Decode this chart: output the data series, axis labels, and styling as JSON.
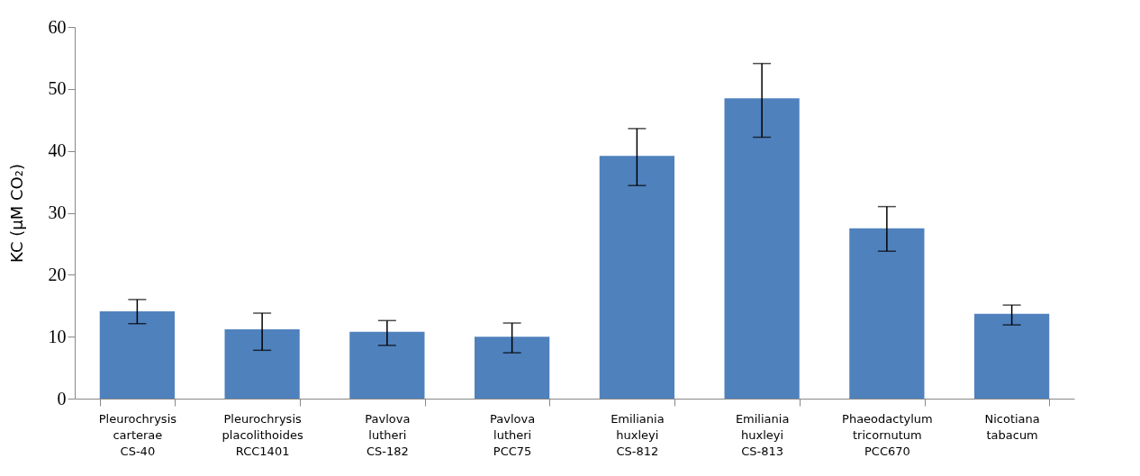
{
  "chart_data": {
    "type": "bar",
    "ylabel": "KC (μM CO₂)",
    "categories": [
      "Pleurochrysis\ncarterae\nCS-40",
      "Pleurochrysis\nplacolithoides\nRCC1401",
      "Pavlova\nlutheri\nCS-182",
      "Pavlova\nlutheri\nPCC75",
      "Emiliania\nhuxleyi\nCS-812",
      "Emiliania\nhuxleyi\nCS-813",
      "Phaeodactylum\ntricornutum\nPCC670",
      "Nicotiana\ntabacum"
    ],
    "values": [
      14.1,
      11.2,
      10.8,
      10.0,
      39.2,
      48.5,
      27.5,
      13.7
    ],
    "errors": [
      [
        12.1,
        16.0
      ],
      [
        7.8,
        13.8
      ],
      [
        8.6,
        12.6
      ],
      [
        7.4,
        12.2
      ],
      [
        34.4,
        43.6
      ],
      [
        42.2,
        54.1
      ],
      [
        23.8,
        31.0
      ],
      [
        11.9,
        15.1
      ]
    ],
    "color": "#4f81bd",
    "ylim": [
      0,
      60
    ],
    "yticks": [
      0,
      10,
      20,
      30,
      40,
      50,
      60
    ],
    "grid": false
  }
}
